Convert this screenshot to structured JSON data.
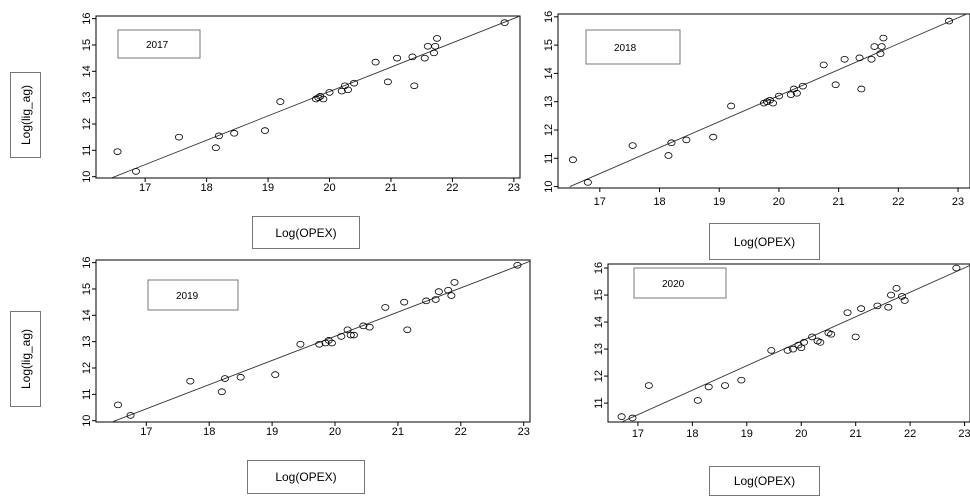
{
  "labels": {
    "xlabel": "Log(OPEX)",
    "ylabel": "Log(lig_ag)"
  },
  "chart_data": [
    {
      "type": "scatter",
      "legend_text": "2017",
      "legend_placement": "top-left",
      "xlabel": "Log(OPEX)",
      "ylabel": "Log(lig_ag)",
      "xlim": [
        16.2,
        23.1
      ],
      "ylim": [
        9.95,
        16.1
      ],
      "x_ticks": [
        17,
        18,
        19,
        20,
        21,
        22,
        23
      ],
      "y_ticks": [
        10,
        11,
        12,
        13,
        14,
        15,
        16
      ],
      "x": [
        16.55,
        16.85,
        17.55,
        18.15,
        18.2,
        18.45,
        18.95,
        19.2,
        19.78,
        19.82,
        19.85,
        19.9,
        20.0,
        20.2,
        20.25,
        20.3,
        20.4,
        20.75,
        20.95,
        21.1,
        21.35,
        21.38,
        21.55,
        21.6,
        21.7,
        21.72,
        21.75,
        22.85
      ],
      "y": [
        10.95,
        10.2,
        11.5,
        11.1,
        11.55,
        11.65,
        11.75,
        12.85,
        12.95,
        13.0,
        13.05,
        12.95,
        13.2,
        13.25,
        13.45,
        13.3,
        13.55,
        14.35,
        13.6,
        14.5,
        14.55,
        13.45,
        14.5,
        14.95,
        14.7,
        14.95,
        15.25,
        15.85
      ],
      "fit_line": {
        "x": [
          16.45,
          23.1
        ],
        "y": [
          9.95,
          16.1
        ]
      }
    },
    {
      "type": "scatter",
      "legend_text": "2018",
      "legend_placement": "top-left",
      "xlabel": "Log(OPEX)",
      "ylabel": "",
      "xlim": [
        16.3,
        23.2
      ],
      "ylim": [
        9.95,
        16.1
      ],
      "x_ticks": [
        17,
        18,
        19,
        20,
        21,
        22,
        23
      ],
      "y_ticks": [
        10,
        11,
        12,
        13,
        14,
        15,
        16
      ],
      "x": [
        16.55,
        16.8,
        17.55,
        18.15,
        18.2,
        18.45,
        18.9,
        19.2,
        19.75,
        19.8,
        19.85,
        19.9,
        20.0,
        20.2,
        20.25,
        20.3,
        20.4,
        20.75,
        20.95,
        21.1,
        21.35,
        21.38,
        21.55,
        21.6,
        21.7,
        21.72,
        21.75,
        22.85
      ],
      "y": [
        10.95,
        10.15,
        11.45,
        11.1,
        11.55,
        11.65,
        11.75,
        12.85,
        12.95,
        13.0,
        13.05,
        12.95,
        13.2,
        13.25,
        13.45,
        13.3,
        13.55,
        14.3,
        13.6,
        14.5,
        14.55,
        13.45,
        14.5,
        14.95,
        14.7,
        14.95,
        15.25,
        15.85
      ],
      "fit_line": {
        "x": [
          16.5,
          23.2
        ],
        "y": [
          10.0,
          16.15
        ]
      }
    },
    {
      "type": "scatter",
      "legend_text": "2019",
      "legend_placement": "top-left",
      "xlabel": "Log(OPEX)",
      "ylabel": "Log(lig_ag)",
      "xlim": [
        16.2,
        23.1
      ],
      "ylim": [
        9.95,
        16.1
      ],
      "x_ticks": [
        17,
        18,
        19,
        20,
        21,
        22,
        23
      ],
      "y_ticks": [
        10,
        11,
        12,
        13,
        14,
        15,
        16
      ],
      "x": [
        16.55,
        16.75,
        17.7,
        18.2,
        18.25,
        18.5,
        19.05,
        19.45,
        19.75,
        19.85,
        19.9,
        19.95,
        20.1,
        20.2,
        20.25,
        20.3,
        20.45,
        20.55,
        20.8,
        21.1,
        21.15,
        21.45,
        21.6,
        21.65,
        21.8,
        21.85,
        21.9,
        22.9
      ],
      "y": [
        10.6,
        10.2,
        11.5,
        11.1,
        11.6,
        11.65,
        11.75,
        12.9,
        12.9,
        12.95,
        13.05,
        12.95,
        13.2,
        13.45,
        13.25,
        13.25,
        13.6,
        13.55,
        14.3,
        14.5,
        13.45,
        14.55,
        14.6,
        14.9,
        14.95,
        14.75,
        15.25,
        15.9
      ],
      "fit_line": {
        "x": [
          16.4,
          23.1
        ],
        "y": [
          9.9,
          16.05
        ]
      }
    },
    {
      "type": "scatter",
      "legend_text": "2020",
      "legend_placement": "top-left",
      "xlabel": "Log(OPEX)",
      "ylabel": "",
      "xlim": [
        16.45,
        23.1
      ],
      "ylim": [
        10.3,
        16.15
      ],
      "x_ticks": [
        17,
        18,
        19,
        20,
        21,
        22,
        23
      ],
      "y_ticks": [
        11,
        12,
        13,
        14,
        15,
        16
      ],
      "x": [
        16.7,
        16.9,
        17.2,
        18.1,
        18.3,
        18.6,
        18.9,
        19.45,
        19.75,
        19.85,
        19.95,
        20.0,
        20.05,
        20.2,
        20.3,
        20.35,
        20.5,
        20.55,
        20.85,
        21.0,
        21.1,
        21.4,
        21.6,
        21.65,
        21.75,
        21.85,
        21.9,
        22.85
      ],
      "y": [
        10.5,
        10.45,
        11.65,
        11.1,
        11.6,
        11.65,
        11.85,
        12.95,
        12.95,
        13.0,
        13.15,
        13.05,
        13.25,
        13.45,
        13.3,
        13.25,
        13.6,
        13.55,
        14.35,
        13.45,
        14.5,
        14.6,
        14.55,
        15.0,
        15.25,
        14.95,
        14.8,
        16.0
      ],
      "fit_line": {
        "x": [
          16.7,
          23.1
        ],
        "y": [
          10.3,
          16.1
        ]
      }
    }
  ]
}
